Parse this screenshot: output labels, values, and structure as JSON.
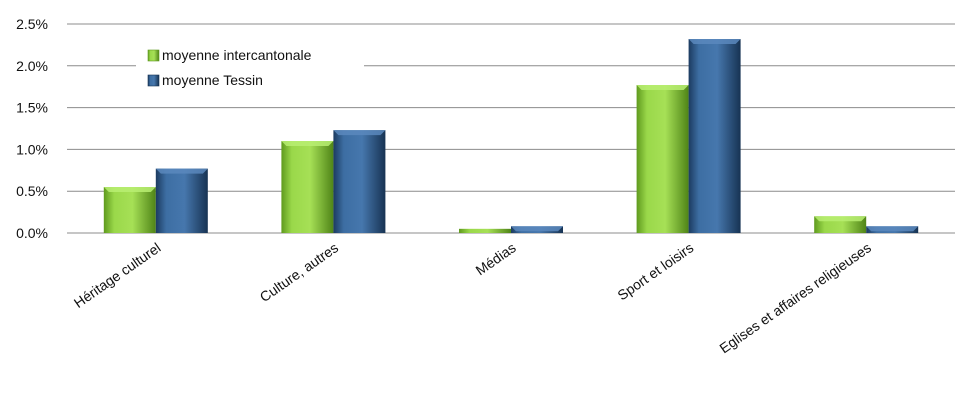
{
  "chart_data": {
    "type": "bar",
    "categories": [
      "Héritage culturel",
      "Culture, autres",
      "Médias",
      "Sport et loisirs",
      "Eglises et affaires religieuses"
    ],
    "series": [
      {
        "name": "moyenne intercantonale",
        "values": [
          0.55,
          1.1,
          0.05,
          1.77,
          0.2
        ],
        "color": "#8ccc3a"
      },
      {
        "name": "moyenne Tessin",
        "values": [
          0.77,
          1.23,
          0.08,
          2.32,
          0.08
        ],
        "color": "#2e5a8a"
      }
    ],
    "yticks": [
      "0.0%",
      "0.5%",
      "1.0%",
      "1.5%",
      "2.0%",
      "2.5%"
    ],
    "ylim": [
      0,
      2.5
    ],
    "grid": true,
    "legend_position": "top-left"
  }
}
